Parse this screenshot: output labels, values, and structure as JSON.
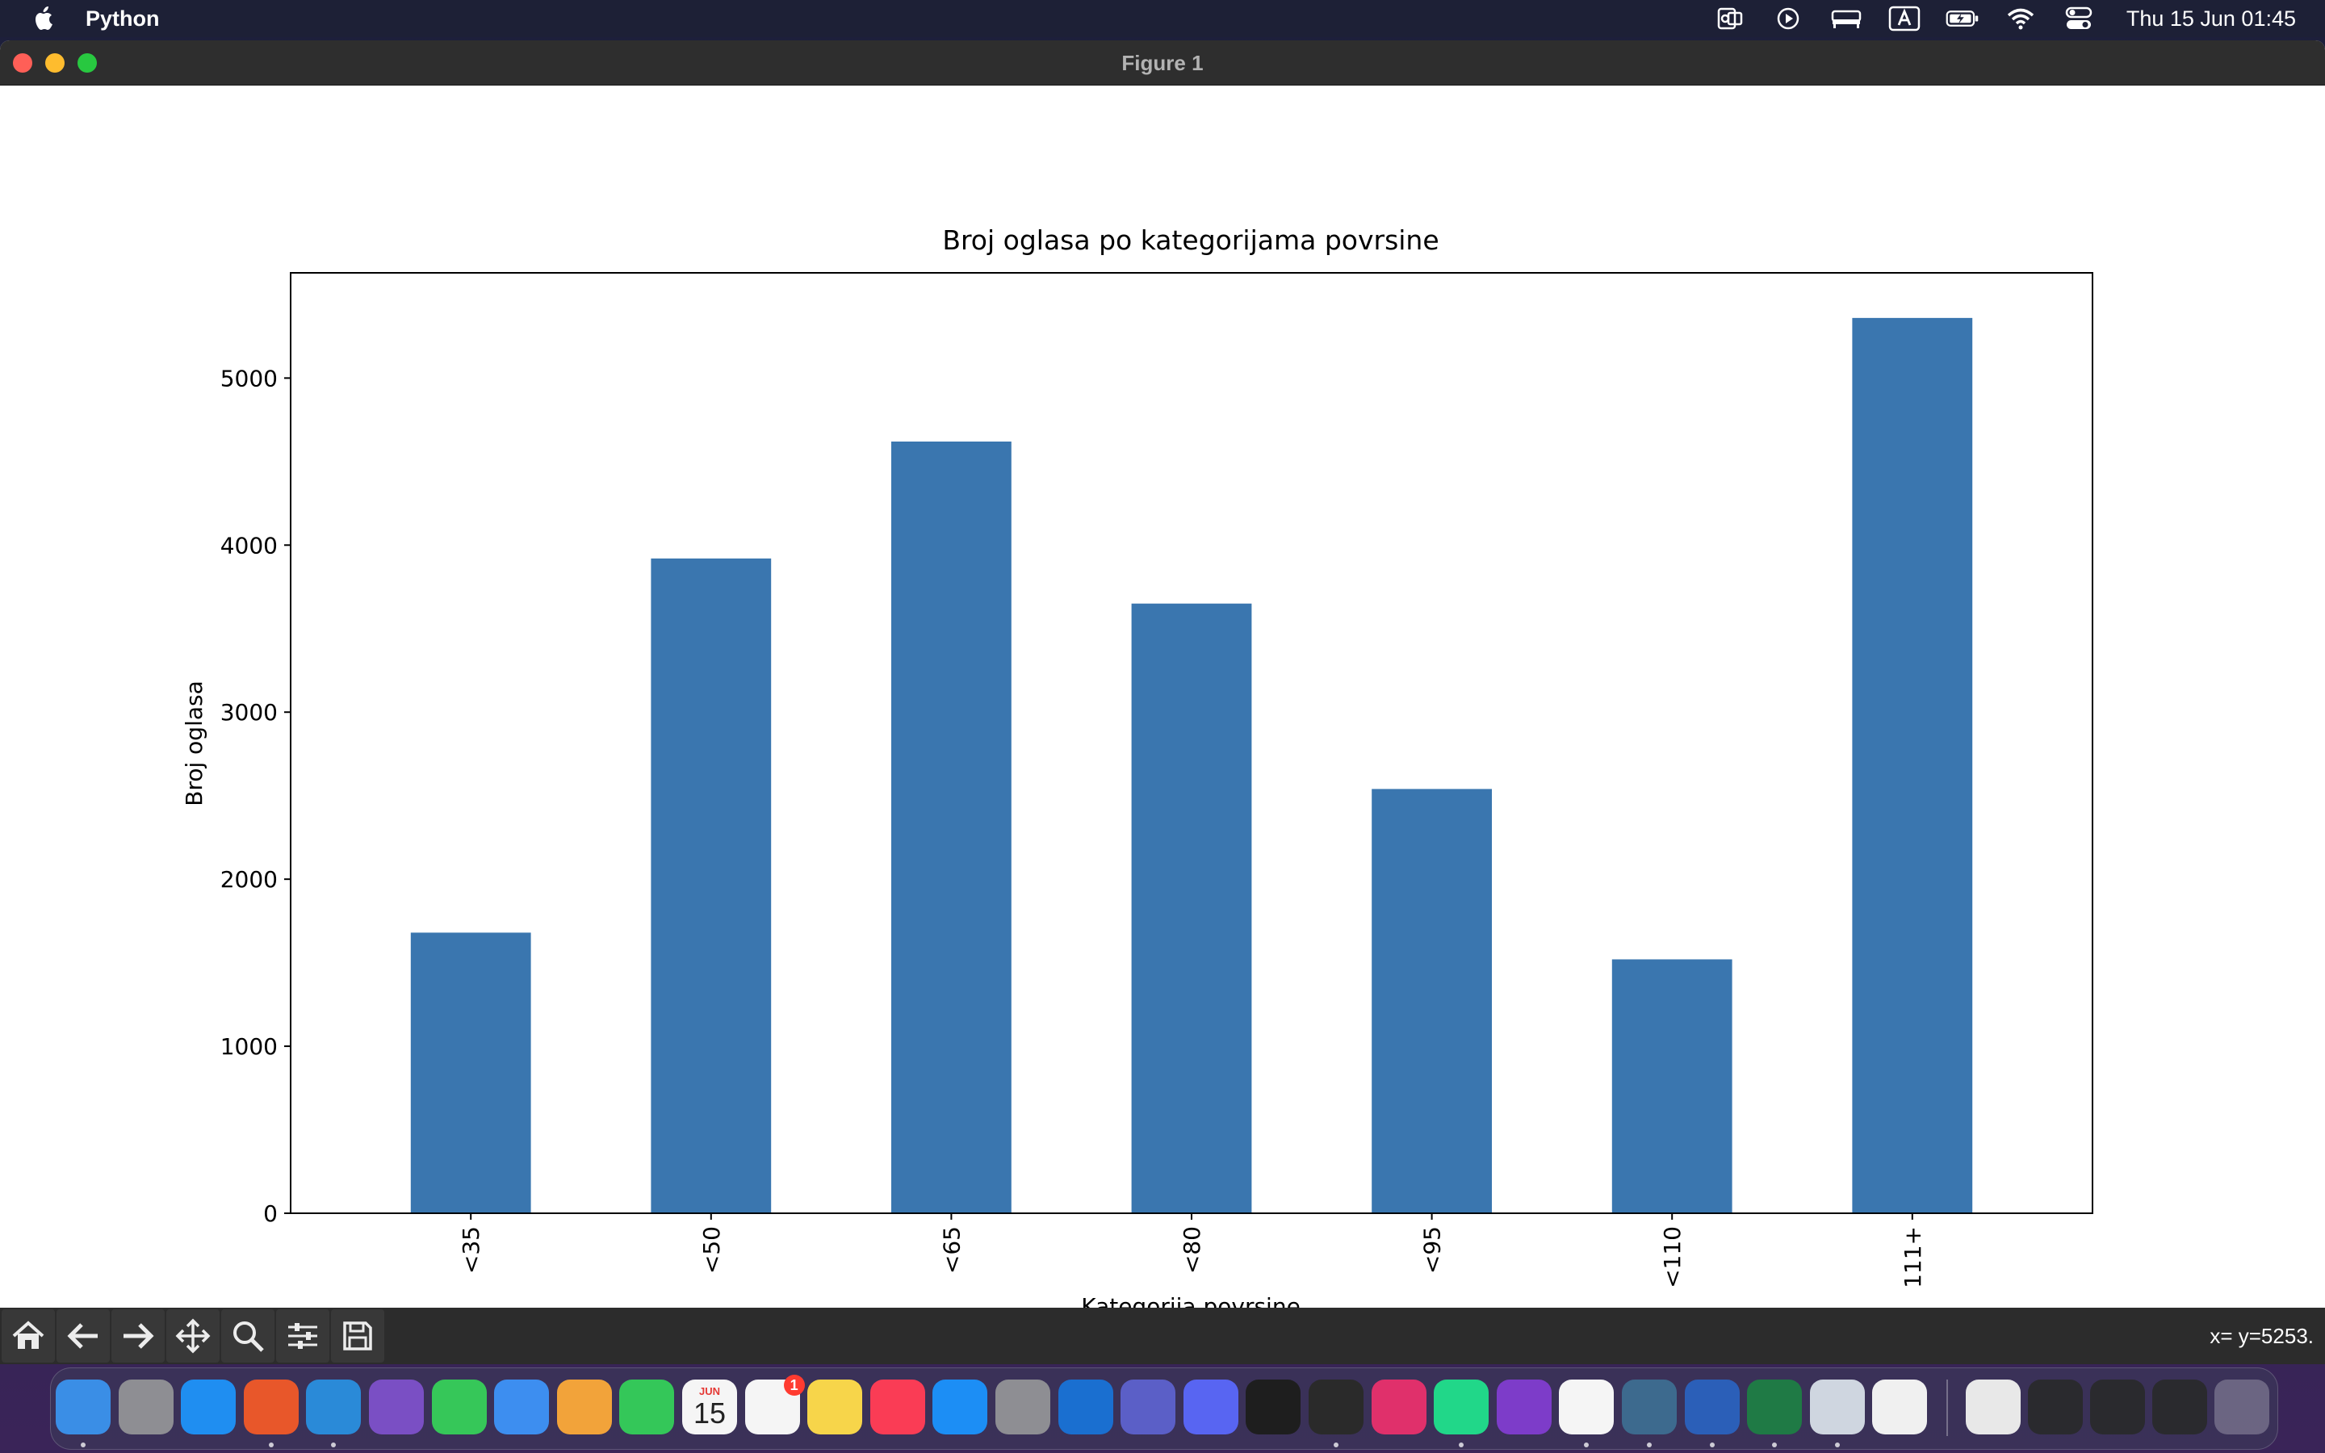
{
  "menubar": {
    "app_name": "Python",
    "clock": "Thu 15 Jun  01:45",
    "status_icons": [
      "outlook-icon",
      "play-icon",
      "bed-icon",
      "input-a-icon",
      "battery-icon",
      "wifi-icon",
      "control-center-icon"
    ]
  },
  "window": {
    "title": "Figure 1"
  },
  "toolbar": {
    "tools": [
      "home-icon",
      "back-arrow-icon",
      "forward-arrow-icon",
      "pan-icon",
      "zoom-icon",
      "configure-icon",
      "save-icon"
    ],
    "coords": "x= y=5253."
  },
  "chart_data": {
    "type": "bar",
    "title": "Broj oglasa po kategorijama povrsine",
    "xlabel": "Kategorija povrsine",
    "ylabel": "Broj oglasa",
    "categories": [
      "<35",
      "<50",
      "<65",
      "<80",
      "<95",
      "<110",
      "111+"
    ],
    "values": [
      1680,
      3920,
      4620,
      3650,
      2540,
      1520,
      5360
    ],
    "ylim": [
      0,
      5630
    ],
    "yticks": [
      0,
      1000,
      2000,
      3000,
      4000,
      5000
    ],
    "bar_color": "#3a76af",
    "grid": false,
    "legend": false
  },
  "dock": {
    "apps": [
      {
        "name": "finder-icon",
        "color": "#3a8ee6"
      },
      {
        "name": "launchpad-icon",
        "color": "#8e8e93"
      },
      {
        "name": "safari-icon",
        "color": "#1f8ef1"
      },
      {
        "name": "firefox-icon",
        "color": "#e8572a"
      },
      {
        "name": "vscode-icon",
        "color": "#2a8ad8"
      },
      {
        "name": "visual-studio-icon",
        "color": "#7a4fc4"
      },
      {
        "name": "messages-icon",
        "color": "#36c759"
      },
      {
        "name": "mail-icon",
        "color": "#3d8ef0"
      },
      {
        "name": "photos-icon",
        "color": "#f2a33a"
      },
      {
        "name": "facetime-icon",
        "color": "#34c759"
      },
      {
        "name": "calendar-icon",
        "color": "#f5f5f5"
      },
      {
        "name": "reminders-icon",
        "color": "#f5f5f5"
      },
      {
        "name": "notes-icon",
        "color": "#f7d54a"
      },
      {
        "name": "music-icon",
        "color": "#fa3c55"
      },
      {
        "name": "app-store-icon",
        "color": "#1c8ef5"
      },
      {
        "name": "system-settings-icon",
        "color": "#8e8e93"
      },
      {
        "name": "outlook-icon",
        "color": "#1a6fd0"
      },
      {
        "name": "teams-icon",
        "color": "#5b5fc7"
      },
      {
        "name": "discord-icon",
        "color": "#5865f2"
      },
      {
        "name": "terminal-icon",
        "color": "#1e1e1e"
      },
      {
        "name": "activity-monitor-icon",
        "color": "#2a2a2a"
      },
      {
        "name": "intellij-icon",
        "color": "#e0306b"
      },
      {
        "name": "pycharm-icon",
        "color": "#21d789"
      },
      {
        "name": "dev-tools-icon",
        "color": "#7d3cc9"
      },
      {
        "name": "slack-icon",
        "color": "#f5f5f5"
      },
      {
        "name": "mysql-workbench-icon",
        "color": "#3d6a8e"
      },
      {
        "name": "word-icon",
        "color": "#2b5fb8"
      },
      {
        "name": "excel-icon",
        "color": "#1f7a45"
      },
      {
        "name": "preview-icon",
        "color": "#cfd6e0"
      },
      {
        "name": "colors-icon",
        "color": "#f0f0f0"
      }
    ],
    "calendar": {
      "month": "JUN",
      "day": "15"
    },
    "reminders_badge": "1",
    "tail": [
      "python-file-icon",
      "window-thumbnail-icon",
      "window-thumbnail-icon",
      "window-thumbnail-icon",
      "trash-icon"
    ]
  }
}
